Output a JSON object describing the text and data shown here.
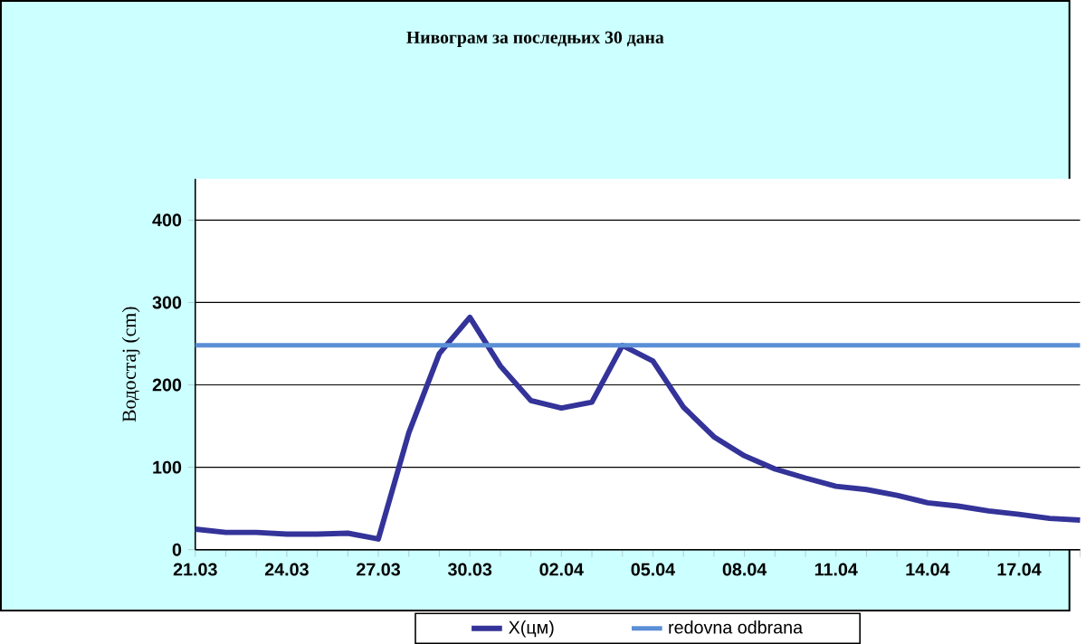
{
  "chart_data": {
    "type": "line",
    "title": "Нивограм за последњих 30 дана",
    "ylabel": "Водостај (cm)",
    "categories": [
      "21.03",
      null,
      null,
      "24.03",
      null,
      null,
      "27.03",
      null,
      null,
      "30.03",
      null,
      null,
      "02.04",
      null,
      null,
      "05.04",
      null,
      null,
      "08.04",
      null,
      null,
      "11.04",
      null,
      null,
      "14.04",
      null,
      null,
      "17.04",
      null,
      null
    ],
    "series": [
      {
        "name": "X(цм)",
        "color": "#333399",
        "values": [
          25,
          21,
          21,
          19,
          19,
          20,
          13,
          142,
          238,
          282,
          223,
          181,
          172,
          179,
          248,
          229,
          173,
          137,
          114,
          98,
          87,
          77,
          73,
          66,
          57,
          53,
          47,
          43,
          38,
          36
        ]
      }
    ],
    "ref_lines": [
      {
        "axis": "y",
        "value": 248,
        "label": "redovna odbrana",
        "color": "#5b8fd6"
      }
    ],
    "ylim": [
      0,
      450
    ],
    "yticks": [
      0,
      100,
      200,
      300,
      400
    ],
    "grid": "y",
    "legend": "bottom",
    "marker": "none",
    "line_style": "solid"
  }
}
